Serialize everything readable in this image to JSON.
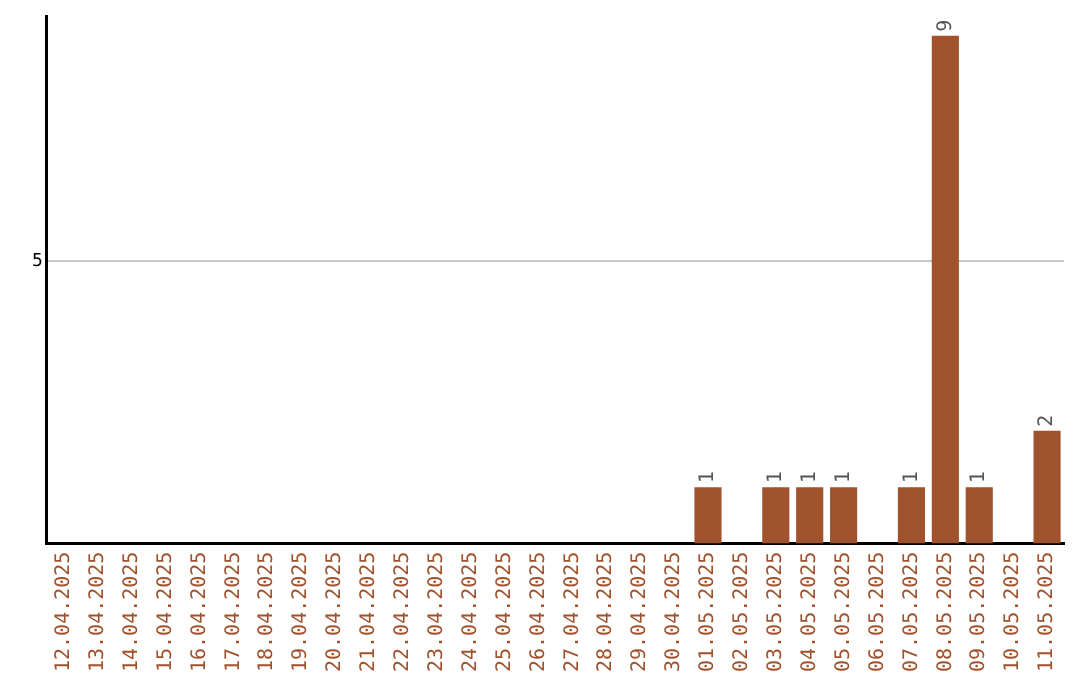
{
  "chart_data": {
    "type": "bar",
    "categories": [
      "12.04.2025",
      "13.04.2025",
      "14.04.2025",
      "15.04.2025",
      "16.04.2025",
      "17.04.2025",
      "18.04.2025",
      "19.04.2025",
      "20.04.2025",
      "21.04.2025",
      "22.04.2025",
      "23.04.2025",
      "24.04.2025",
      "25.04.2025",
      "26.04.2025",
      "27.04.2025",
      "28.04.2025",
      "29.04.2025",
      "30.04.2025",
      "01.05.2025",
      "02.05.2025",
      "03.05.2025",
      "04.05.2025",
      "05.05.2025",
      "06.05.2025",
      "07.05.2025",
      "08.05.2025",
      "09.05.2025",
      "10.05.2025",
      "11.05.2025"
    ],
    "values": [
      null,
      null,
      null,
      null,
      null,
      null,
      null,
      null,
      null,
      null,
      null,
      null,
      null,
      null,
      null,
      null,
      null,
      null,
      null,
      1,
      null,
      1,
      1,
      1,
      null,
      1,
      9,
      1,
      null,
      2
    ],
    "data_labels": true,
    "color": "#a0522d",
    "ylim": [
      0,
      9.35
    ],
    "yticks": [
      5
    ],
    "grid": "y"
  }
}
